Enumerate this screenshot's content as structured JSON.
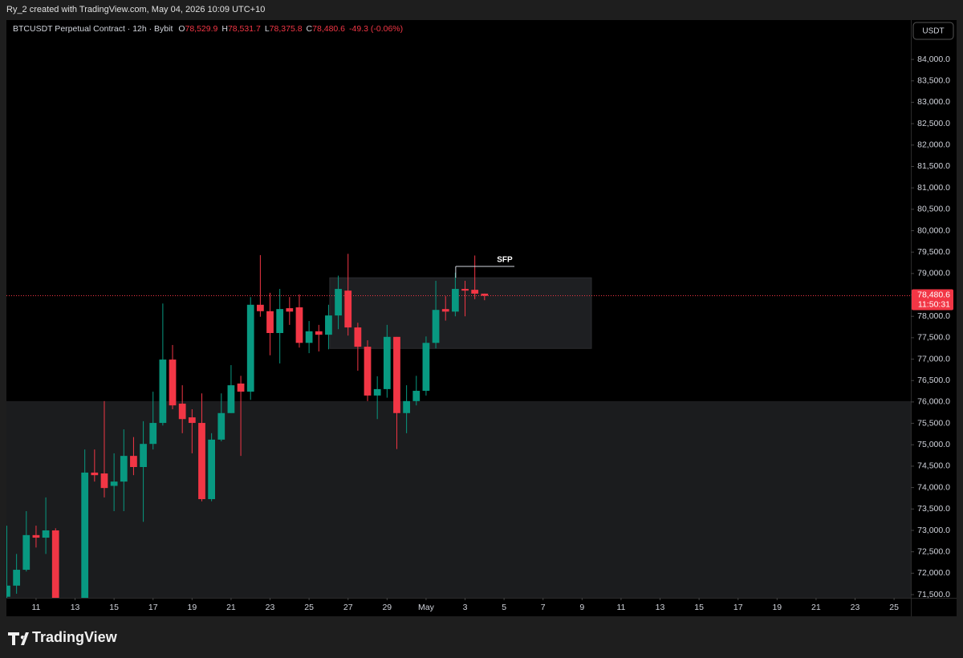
{
  "chart_data": {
    "type": "candlestick",
    "credit": "Ry_2 created with TradingView.com, May 04, 2026 10:09 UTC+10",
    "symbol": "BTCUSDT Perpetual Contract · 12h · Bybit",
    "legend_values": [
      {
        "name": "O",
        "label": "78,529.9"
      },
      {
        "name": "H",
        "label": "78,531.7"
      },
      {
        "name": "L",
        "label": "78,375.8"
      },
      {
        "name": "C",
        "label": "78,480.6"
      }
    ],
    "change": "-49.3 (-0.06%)",
    "currency": "USDT",
    "brand": "TradingView",
    "up_color": "#089981",
    "down_color": "#f23645",
    "x": [
      9.5,
      10,
      10.5,
      11,
      11.5,
      12,
      13.5,
      14,
      14.5,
      15,
      15.5,
      16,
      16.5,
      17,
      17.5,
      18,
      18.5,
      19,
      19.5,
      20,
      20.5,
      21,
      21.5,
      22,
      22.5,
      23,
      23.5,
      24,
      24.5,
      25,
      25.5,
      26,
      26.5,
      27,
      27.5,
      28,
      28.5,
      29,
      29.5,
      30,
      30.5,
      31,
      31.5,
      32,
      32.5,
      33,
      33.5,
      34
    ],
    "open": [
      71450,
      71710,
      72080,
      72890,
      72830,
      73000,
      71400,
      74350,
      74330,
      74040,
      74140,
      74740,
      74480,
      75020,
      75510,
      76990,
      75960,
      75640,
      75510,
      73730,
      75120,
      75740,
      76430,
      76240,
      78270,
      78120,
      77610,
      78190,
      78210,
      77380,
      77650,
      77570,
      78020,
      78600,
      77740,
      77290,
      76150,
      76300,
      77520,
      75740,
      76020,
      76260,
      77380,
      78170,
      78110,
      78640,
      78620,
      78529.9
    ],
    "high": [
      73110,
      72450,
      73450,
      73110,
      73770,
      73050,
      74890,
      74890,
      76020,
      74800,
      75360,
      75180,
      75550,
      76240,
      78300,
      77330,
      76390,
      75830,
      76200,
      75270,
      76200,
      76860,
      76610,
      78450,
      79430,
      78550,
      78640,
      78450,
      78510,
      77890,
      77800,
      78270,
      78950,
      79460,
      77850,
      77440,
      76600,
      77800,
      77520,
      76390,
      76610,
      77530,
      78830,
      78470,
      79020,
      78830,
      79420,
      78531.7
    ],
    "low": [
      71300,
      71520,
      72040,
      72600,
      72450,
      71300,
      71300,
      74140,
      73770,
      73450,
      73450,
      74290,
      73200,
      74890,
      75450,
      75830,
      75270,
      74800,
      73680,
      73680,
      75080,
      75740,
      74740,
      76050,
      77990,
      77090,
      76900,
      77800,
      77270,
      77140,
      77180,
      77230,
      77700,
      77550,
      76730,
      76020,
      75600,
      76100,
      74900,
      75270,
      75920,
      76150,
      77250,
      77900,
      78000,
      78000,
      78400,
      78375.8
    ],
    "close": [
      71710,
      72080,
      72890,
      72830,
      73000,
      71400,
      74350,
      74290,
      73990,
      74140,
      74740,
      74480,
      75020,
      75510,
      76990,
      75920,
      75600,
      75510,
      73730,
      75120,
      75740,
      76390,
      76240,
      78270,
      78120,
      77610,
      78170,
      78110,
      77380,
      77650,
      77570,
      78020,
      78640,
      77740,
      77290,
      76150,
      76300,
      77520,
      75740,
      76020,
      76260,
      77380,
      78150,
      78110,
      78640,
      78600,
      78530,
      78480.6
    ],
    "xlim": [
      9.48,
      55.86
    ],
    "xticks": [
      {
        "value": 11,
        "label": "11"
      },
      {
        "value": 13,
        "label": "13"
      },
      {
        "value": 15,
        "label": "15"
      },
      {
        "value": 17,
        "label": "17"
      },
      {
        "value": 19,
        "label": "19"
      },
      {
        "value": 21,
        "label": "21"
      },
      {
        "value": 23,
        "label": "23"
      },
      {
        "value": 25,
        "label": "25"
      },
      {
        "value": 27,
        "label": "27"
      },
      {
        "value": 29,
        "label": "29"
      },
      {
        "value": 31,
        "label": "May"
      },
      {
        "value": 33,
        "label": "3"
      },
      {
        "value": 35,
        "label": "5"
      },
      {
        "value": 37,
        "label": "7"
      },
      {
        "value": 39,
        "label": "9"
      },
      {
        "value": 41,
        "label": "11"
      },
      {
        "value": 43,
        "label": "13"
      },
      {
        "value": 45,
        "label": "15"
      },
      {
        "value": 47,
        "label": "17"
      },
      {
        "value": 49,
        "label": "19"
      },
      {
        "value": 51,
        "label": "21"
      },
      {
        "value": 53,
        "label": "23"
      },
      {
        "value": 55,
        "label": "25"
      }
    ],
    "ylim": [
      71425,
      84920
    ],
    "yticks": [
      {
        "value": 71500,
        "label": "71,500.0"
      },
      {
        "value": 72000,
        "label": "72,000.0"
      },
      {
        "value": 72500,
        "label": "72,500.0"
      },
      {
        "value": 73000,
        "label": "73,000.0"
      },
      {
        "value": 73500,
        "label": "73,500.0"
      },
      {
        "value": 74000,
        "label": "74,000.0"
      },
      {
        "value": 74500,
        "label": "74,500.0"
      },
      {
        "value": 75000,
        "label": "75,000.0"
      },
      {
        "value": 75500,
        "label": "75,500.0"
      },
      {
        "value": 76000,
        "label": "76,000.0"
      },
      {
        "value": 76500,
        "label": "76,500.0"
      },
      {
        "value": 77000,
        "label": "77,000.0"
      },
      {
        "value": 77500,
        "label": "77,500.0"
      },
      {
        "value": 78000,
        "label": "78,000.0"
      },
      {
        "value": 78500,
        "label": "78,500.0"
      },
      {
        "value": 79000,
        "label": "79,000.0"
      },
      {
        "value": 79500,
        "label": "79,500.0"
      },
      {
        "value": 80000,
        "label": "80,000.0"
      },
      {
        "value": 80500,
        "label": "80,500.0"
      },
      {
        "value": 81000,
        "label": "81,000.0"
      },
      {
        "value": 81500,
        "label": "81,500.0"
      },
      {
        "value": 82000,
        "label": "82,000.0"
      },
      {
        "value": 82500,
        "label": "82,500.0"
      },
      {
        "value": 83000,
        "label": "83,000.0"
      },
      {
        "value": 83500,
        "label": "83,500.0"
      },
      {
        "value": 84000,
        "label": "84,000.0"
      }
    ],
    "zones": [
      {
        "x": [
          9.48,
          55.86
        ],
        "y": [
          71000,
          76020
        ],
        "color": "#1b1c1e"
      },
      {
        "x": [
          26.06,
          39.48
        ],
        "y": [
          77250,
          78900
        ],
        "color": "#1e1f22"
      }
    ],
    "annotation": {
      "text": "SFP",
      "x": [
        32.52,
        35.53
      ],
      "y": 79165
    },
    "last_price": {
      "value": 78480.6,
      "label": "78,480.6"
    },
    "countdown": "11:50:31"
  }
}
